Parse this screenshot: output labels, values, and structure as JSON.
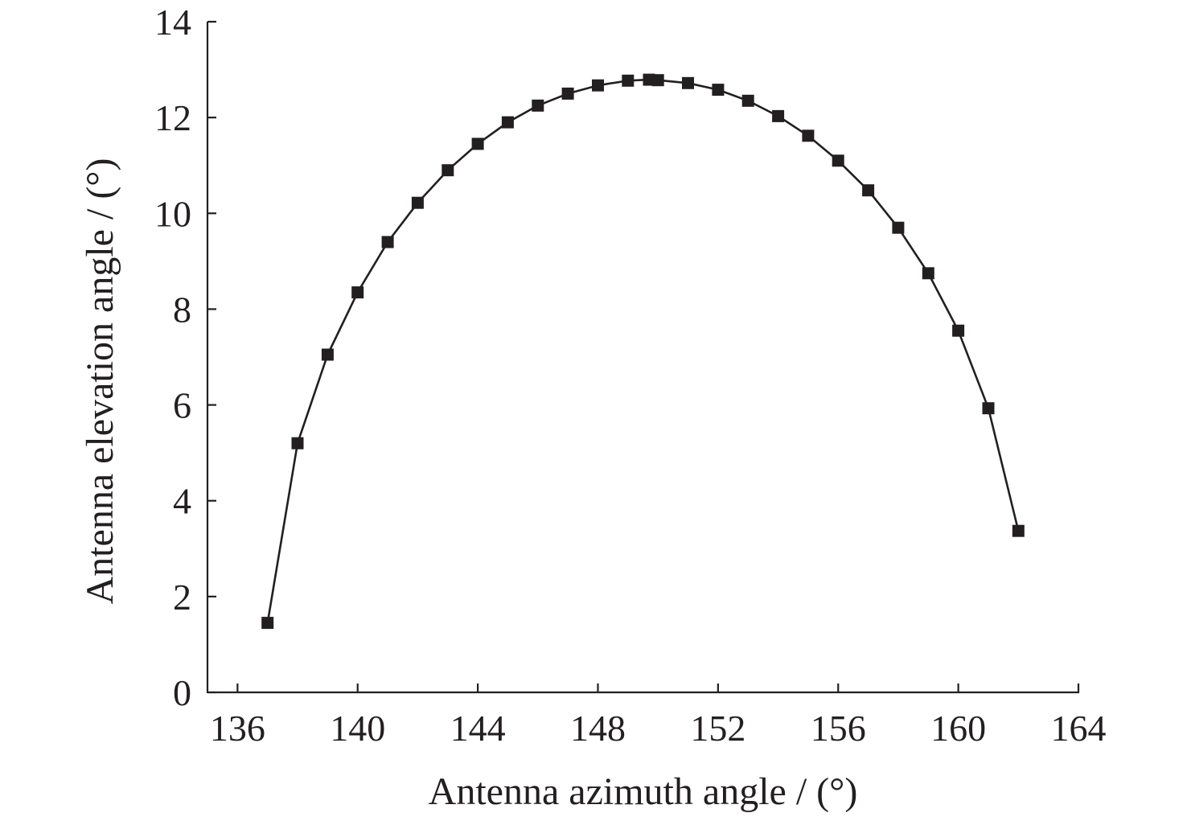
{
  "chart_data": {
    "type": "line",
    "title": "",
    "xlabel": "Antenna azimuth angle / (°)",
    "ylabel": "Antenna elevation angle / (°)",
    "xlim": [
      135,
      164
    ],
    "ylim": [
      0,
      14
    ],
    "xticks": [
      136,
      140,
      144,
      148,
      152,
      156,
      160,
      164
    ],
    "yticks": [
      0,
      2,
      4,
      6,
      8,
      10,
      12,
      14
    ],
    "grid": false,
    "marker": "square",
    "series": [
      {
        "color": "#231f20",
        "x": [
          137,
          138,
          139,
          140,
          141,
          142,
          143,
          144,
          145,
          146,
          147,
          148,
          149,
          149.7,
          150,
          151,
          152,
          153,
          154,
          155,
          156,
          157,
          158,
          159,
          160,
          161,
          162
        ],
        "y": [
          1.45,
          5.2,
          7.05,
          8.35,
          9.4,
          10.22,
          10.9,
          11.45,
          11.9,
          12.25,
          12.5,
          12.67,
          12.77,
          12.79,
          12.78,
          12.72,
          12.58,
          12.35,
          12.03,
          11.62,
          11.1,
          10.48,
          9.7,
          8.75,
          7.55,
          5.93,
          3.37
        ]
      }
    ]
  }
}
